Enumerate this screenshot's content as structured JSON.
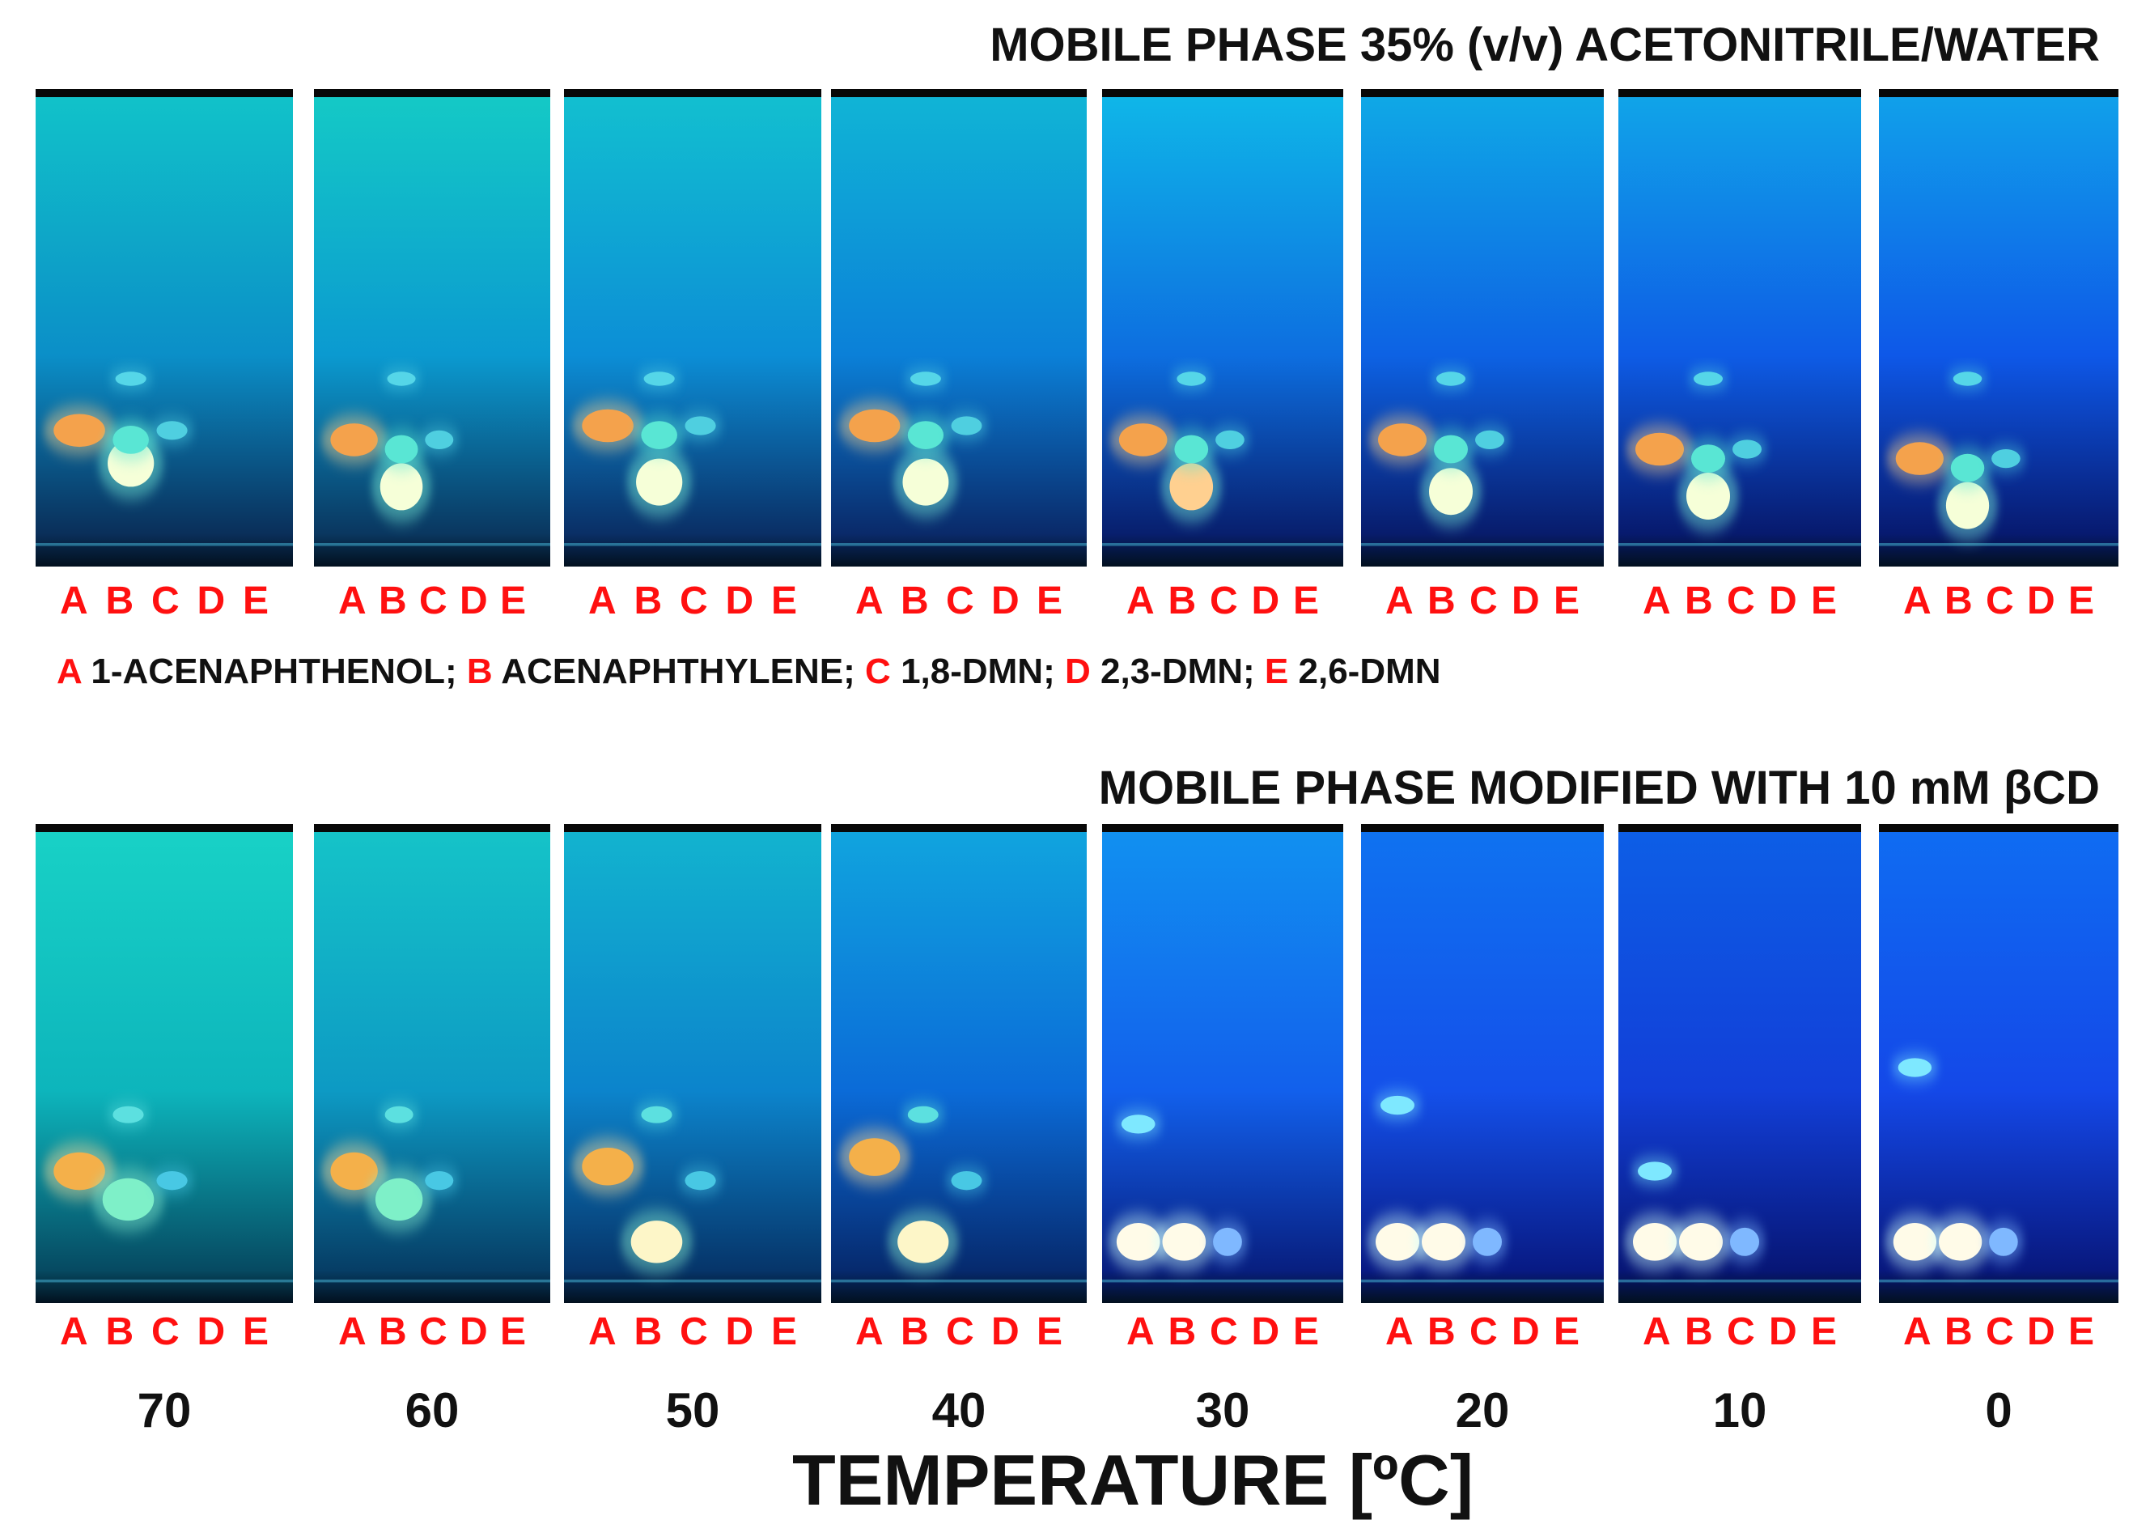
{
  "figure": {
    "title_top": "MOBILE PHASE 35% (v/v) ACETONITRILE/WATER",
    "title_bottom": "MOBILE PHASE MODIFIED WITH 10 mM βCD",
    "lane_letters": [
      "A",
      "B",
      "C",
      "D",
      "E"
    ],
    "legend": [
      {
        "key": "A",
        "label": "1-ACENAPHTHENOL;"
      },
      {
        "key": "B",
        "label": "ACENAPHTHYLENE;"
      },
      {
        "key": "C",
        "label": "1,8-DMN;"
      },
      {
        "key": "D",
        "label": "2,3-DMN;"
      },
      {
        "key": "E",
        "label": "2,6-DMN"
      }
    ],
    "temperatures": [
      "70",
      "60",
      "50",
      "40",
      "30",
      "20",
      "10",
      "0"
    ],
    "axis_title": "TEMPERATURE [ºC]",
    "colors": {
      "label_red": "#ff1010",
      "plate_cyan": "#1fc9c4",
      "plate_blue": "#1a4cf0",
      "spot_orange": "#f3a34a",
      "spot_white": "#fffbe8",
      "spot_cyan": "#63f2dc"
    }
  }
}
